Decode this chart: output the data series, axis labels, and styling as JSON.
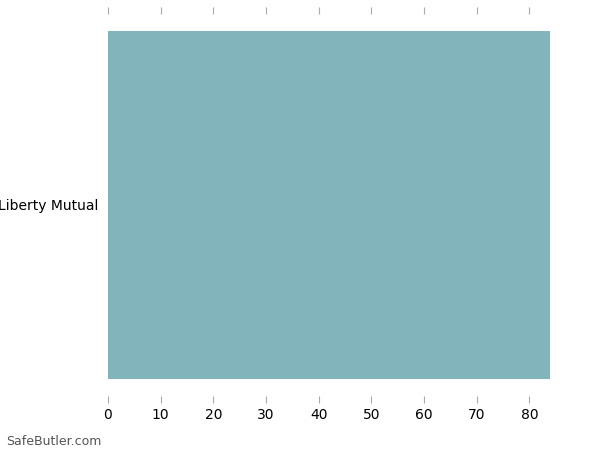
{
  "categories": [
    "Liberty Mutual"
  ],
  "values": [
    84
  ],
  "bar_color": "#82b4bc",
  "background_color": "#ffffff",
  "xlim": [
    0,
    90
  ],
  "xticks": [
    0,
    10,
    20,
    30,
    40,
    50,
    60,
    70,
    80
  ],
  "tick_color": "#aaaaaa",
  "font_size": 10,
  "watermark": "SafeButler.com",
  "bar_height": 0.92
}
